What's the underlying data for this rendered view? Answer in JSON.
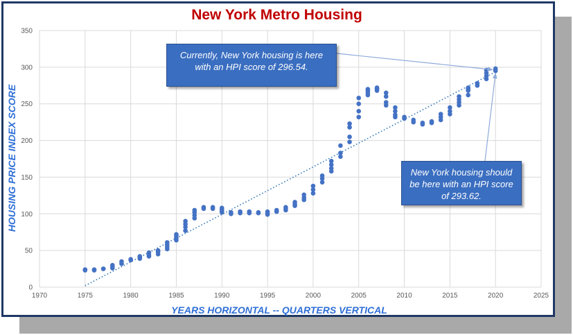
{
  "chart_data": {
    "type": "scatter",
    "title": "New York Metro Housing",
    "xlabel": "YEARS HORIZONTAL -- QUARTERS VERTICAL",
    "ylabel": "HOUSING PRICE INDEX SCORE",
    "xlim": [
      1970,
      2025
    ],
    "ylim": [
      0,
      350
    ],
    "xticks": [
      1970,
      1975,
      1980,
      1985,
      1990,
      1995,
      2000,
      2005,
      2010,
      2015,
      2020,
      2025
    ],
    "yticks": [
      0,
      50,
      100,
      150,
      200,
      250,
      300,
      350
    ],
    "grid": true,
    "legend": "none",
    "marker_color": "#4472c4",
    "trendline": {
      "style": "dotted",
      "color": "#2e75b6",
      "x": [
        1975,
        2020
      ],
      "y": [
        2,
        293.62
      ]
    },
    "series": [
      {
        "x": [
          1975,
          1975,
          1976,
          1976,
          1977,
          1977,
          1978,
          1978,
          1978,
          1979,
          1979,
          1980,
          1980,
          1981,
          1981,
          1981,
          1982,
          1982,
          1982,
          1983,
          1983,
          1983,
          1984,
          1984,
          1984,
          1984,
          1985,
          1985,
          1985,
          1985,
          1986,
          1986,
          1986,
          1986,
          1987,
          1987,
          1987,
          1987,
          1988,
          1988,
          1989,
          1989,
          1990,
          1990,
          1990,
          1990,
          1991,
          1991,
          1992,
          1992,
          1993,
          1993,
          1994,
          1994,
          1995,
          1995,
          1995,
          1996,
          1996,
          1997,
          1997,
          1997,
          1998,
          1998,
          1998,
          1999,
          1999,
          1999,
          2000,
          2000,
          2000,
          2001,
          2001,
          2001,
          2002,
          2002,
          2002,
          2002,
          2003,
          2003,
          2003,
          2004,
          2004,
          2004,
          2004,
          2005,
          2005,
          2005,
          2005,
          2006,
          2006,
          2006,
          2006,
          2007,
          2007,
          2007,
          2007,
          2008,
          2008,
          2008,
          2008,
          2009,
          2009,
          2009,
          2009,
          2010,
          2010,
          2011,
          2011,
          2012,
          2012,
          2013,
          2013,
          2014,
          2014,
          2014,
          2015,
          2015,
          2015,
          2016,
          2016,
          2016,
          2016,
          2017,
          2017,
          2017,
          2017,
          2018,
          2018,
          2019,
          2019,
          2019,
          2019,
          2020,
          2020
        ],
        "y": [
          23,
          24,
          23,
          24,
          25,
          25,
          26,
          28,
          30,
          32,
          35,
          37,
          38,
          39,
          41,
          42,
          42,
          44,
          47,
          45,
          48,
          50,
          52,
          55,
          58,
          61,
          64,
          67,
          70,
          72,
          77,
          82,
          86,
          90,
          94,
          98,
          102,
          105,
          107,
          109,
          107,
          109,
          102,
          104,
          106,
          108,
          100,
          102,
          101,
          103,
          101,
          103,
          101,
          102,
          99,
          101,
          103,
          103,
          105,
          105,
          107,
          109,
          111,
          113,
          116,
          119,
          122,
          126,
          128,
          133,
          138,
          143,
          148,
          152,
          158,
          162,
          167,
          172,
          178,
          183,
          193,
          198,
          205,
          218,
          223,
          232,
          240,
          250,
          258,
          262,
          265,
          268,
          270,
          268,
          270,
          271,
          272,
          260,
          265,
          252,
          248,
          245,
          240,
          235,
          232,
          230,
          232,
          225,
          228,
          222,
          224,
          224,
          226,
          228,
          232,
          236,
          236,
          240,
          245,
          248,
          252,
          256,
          260,
          262,
          268,
          270,
          272,
          275,
          278,
          284,
          288,
          292,
          296,
          295,
          298
        ]
      }
    ],
    "annotations": [
      "Currently, New York housing is here with an HPI score of 296.54.",
      "New York housing should be here with an HPI score of 293.62."
    ]
  }
}
